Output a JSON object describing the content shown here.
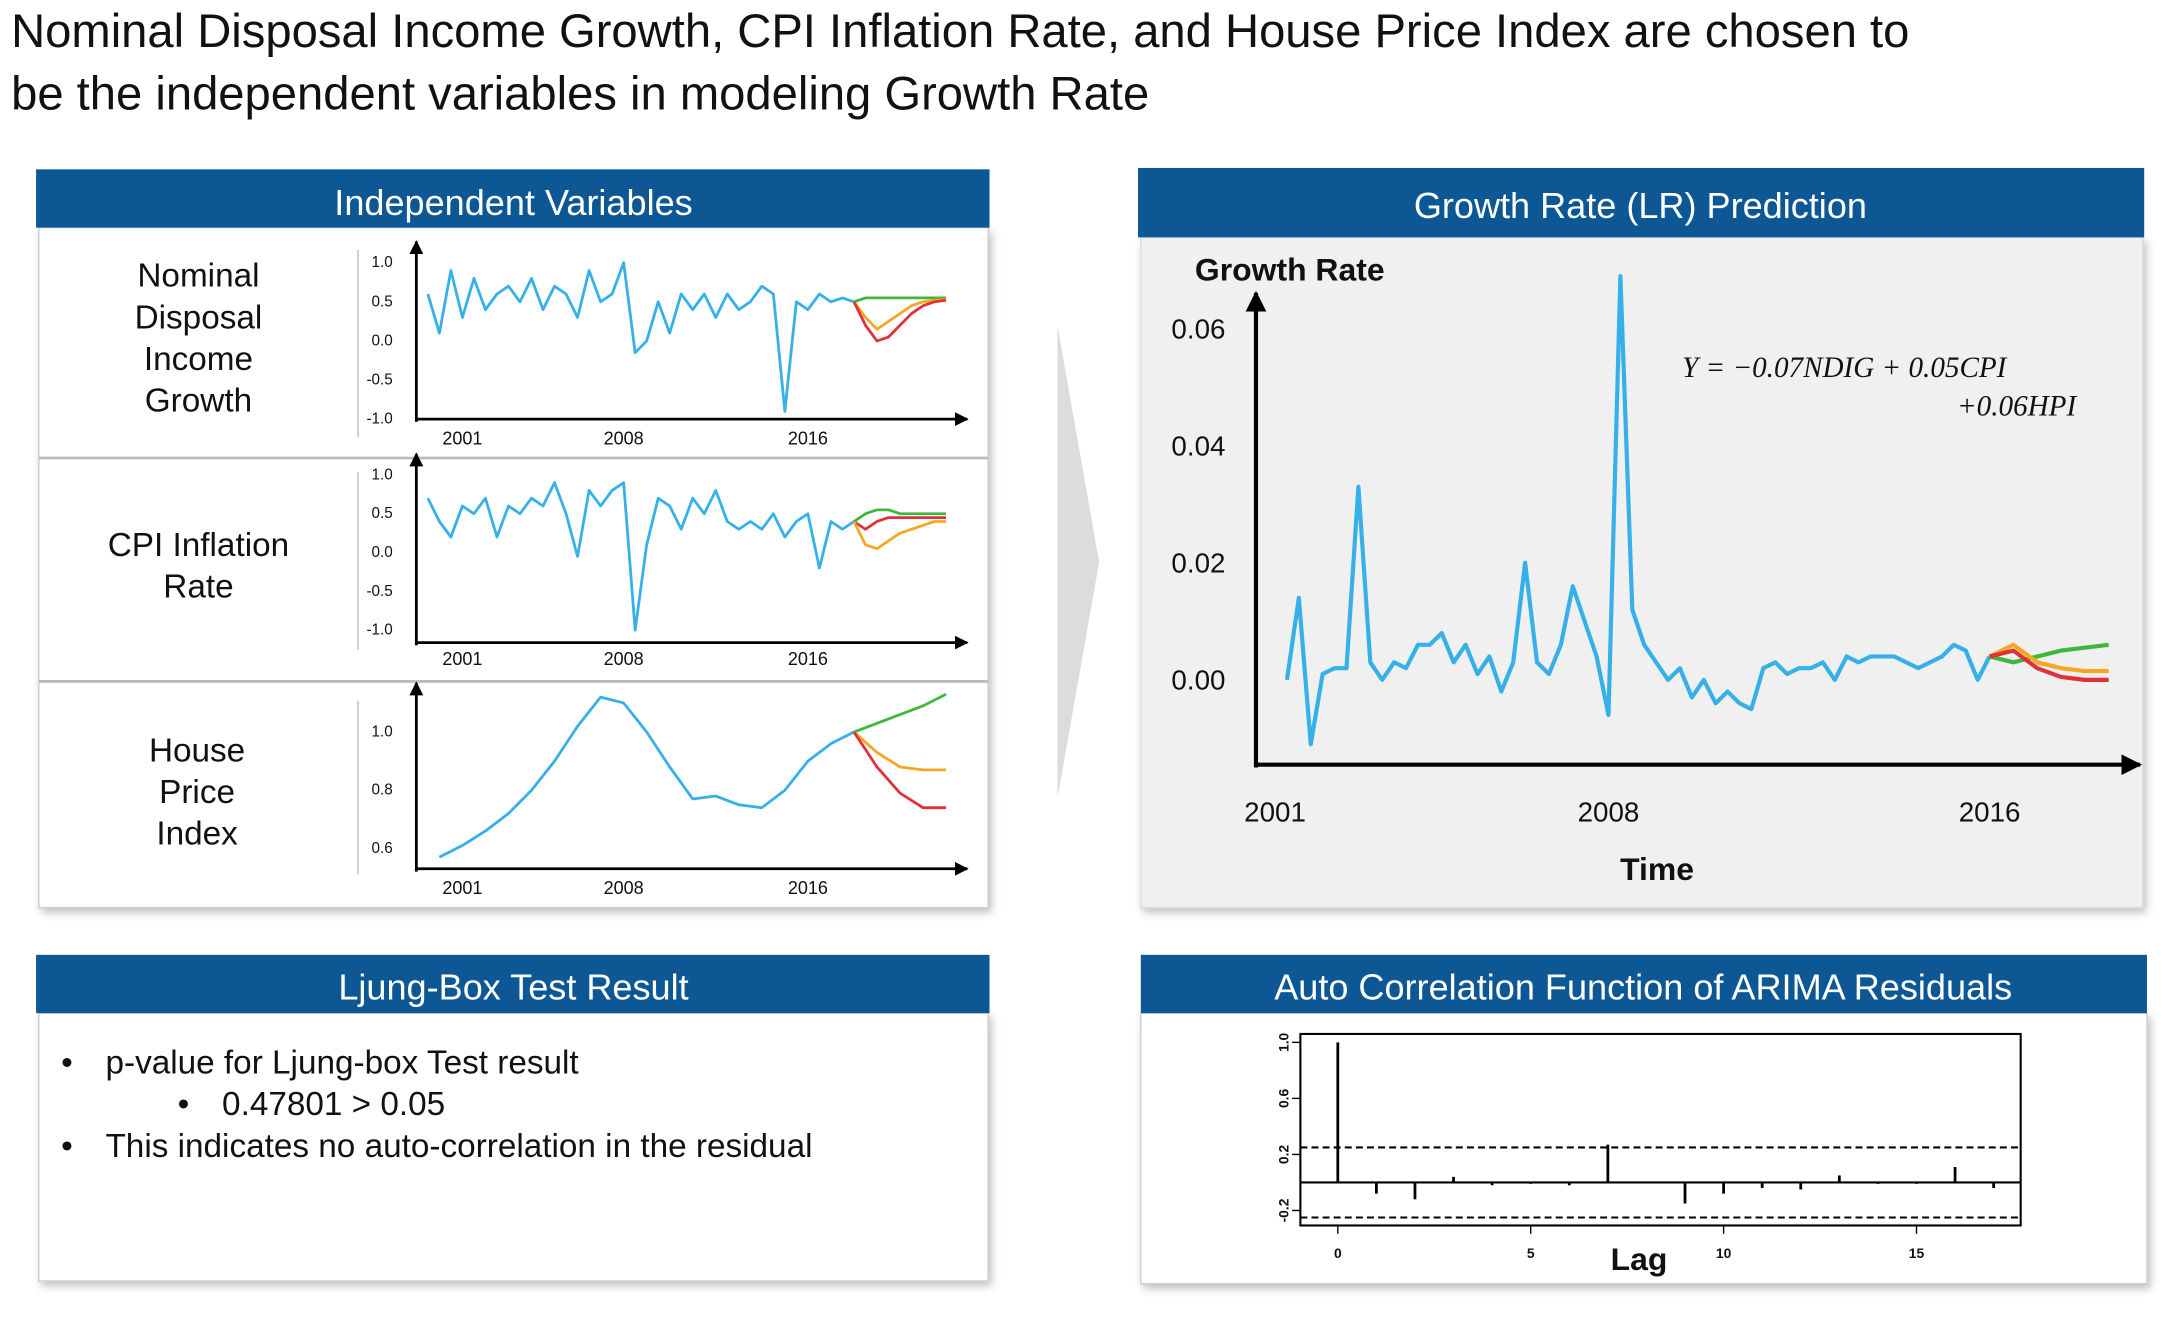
{
  "title_lines": [
    "Nominal Disposal Income Growth, CPI Inflation Rate, and House Price Index are chosen to",
    "be the independent variables in modeling Growth Rate"
  ],
  "panels": {
    "independent_variables": "Independent Variables",
    "ljung_box": {
      "title": "Ljung-Box Test Result",
      "items": [
        {
          "text": "p-value for Ljung-box Test result",
          "sub": [
            "0.47801 > 0.05"
          ]
        },
        {
          "text": "This indicates no auto-correlation in the residual"
        }
      ]
    }
  },
  "chart_data": [
    {
      "type": "line",
      "label_lines": [
        "Nominal",
        "Disposal",
        "Income",
        "Growth"
      ],
      "xlim": [
        1999,
        2022.5
      ],
      "xticks": [
        2001,
        2008,
        2016
      ],
      "ylim": [
        -1,
        1.2
      ],
      "yticks": [
        {
          "value": 1,
          "label": "1.0"
        },
        0.5,
        {
          "value": 0,
          "label": "0.0"
        },
        -0.5,
        {
          "value": -1,
          "label": "-1.0"
        }
      ],
      "series": [
        {
          "color": "#36b0e8",
          "x": [
            1999.5,
            2000,
            2000.5,
            2001,
            2001.5,
            2002,
            2002.5,
            2003,
            2003.5,
            2004,
            2004.5,
            2005,
            2005.5,
            2006,
            2006.5,
            2007,
            2007.5,
            2008,
            2008.5,
            2009,
            2009.5,
            2010,
            2010.5,
            2011,
            2011.5,
            2012,
            2012.5,
            2013,
            2013.5,
            2014,
            2014.5,
            2015,
            2015.5,
            2016,
            2016.5,
            2017,
            2017.5,
            2018
          ],
          "values": [
            0.6,
            0.1,
            0.9,
            0.3,
            0.8,
            0.4,
            0.6,
            0.7,
            0.5,
            0.8,
            0.4,
            0.7,
            0.6,
            0.3,
            0.9,
            0.5,
            0.6,
            1.0,
            -0.15,
            0.0,
            0.5,
            0.1,
            0.6,
            0.4,
            0.6,
            0.3,
            0.6,
            0.4,
            0.5,
            0.7,
            0.6,
            -0.9,
            0.5,
            0.4,
            0.6,
            0.5,
            0.55,
            0.5
          ]
        },
        {
          "color": "#3cb93c",
          "x": [
            2018,
            2018.5,
            2019,
            2019.5,
            2020,
            2020.5,
            2021,
            2021.5,
            2022
          ],
          "values": [
            0.5,
            0.55,
            0.55,
            0.55,
            0.55,
            0.55,
            0.55,
            0.55,
            0.55
          ]
        },
        {
          "color": "#f5a623",
          "x": [
            2018,
            2018.5,
            2019,
            2019.5,
            2020,
            2020.5,
            2021,
            2021.5,
            2022
          ],
          "values": [
            0.5,
            0.3,
            0.15,
            0.25,
            0.35,
            0.45,
            0.5,
            0.52,
            0.53
          ]
        },
        {
          "color": "#e0303a",
          "x": [
            2018,
            2018.5,
            2019,
            2019.5,
            2020,
            2020.5,
            2021,
            2021.5,
            2022
          ],
          "values": [
            0.5,
            0.2,
            0.0,
            0.05,
            0.2,
            0.35,
            0.45,
            0.5,
            0.52
          ]
        }
      ]
    },
    {
      "type": "line",
      "label_lines": [
        "CPI Inflation",
        "Rate"
      ],
      "xlim": [
        1999,
        2022.5
      ],
      "xticks": [
        2001,
        2008,
        2016
      ],
      "ylim": [
        -1.16,
        1.2
      ],
      "yticks": [
        {
          "value": 1,
          "label": "1.0"
        },
        0.5,
        {
          "value": 0,
          "label": "0.0"
        },
        -0.5,
        {
          "value": -1,
          "label": "-1.0"
        }
      ],
      "series": [
        {
          "color": "#36b0e8",
          "x": [
            1999.5,
            2000,
            2000.5,
            2001,
            2001.5,
            2002,
            2002.5,
            2003,
            2003.5,
            2004,
            2004.5,
            2005,
            2005.5,
            2006,
            2006.5,
            2007,
            2007.5,
            2008,
            2008.5,
            2009,
            2009.5,
            2010,
            2010.5,
            2011,
            2011.5,
            2012,
            2012.5,
            2013,
            2013.5,
            2014,
            2014.5,
            2015,
            2015.5,
            2016,
            2016.5,
            2017,
            2017.5,
            2018
          ],
          "values": [
            0.7,
            0.4,
            0.2,
            0.6,
            0.5,
            0.7,
            0.2,
            0.6,
            0.5,
            0.7,
            0.6,
            0.9,
            0.5,
            -0.05,
            0.8,
            0.6,
            0.8,
            0.9,
            -1.0,
            0.1,
            0.7,
            0.6,
            0.3,
            0.7,
            0.5,
            0.8,
            0.4,
            0.3,
            0.4,
            0.3,
            0.5,
            0.2,
            0.4,
            0.5,
            -0.2,
            0.4,
            0.3,
            0.4
          ]
        },
        {
          "color": "#3cb93c",
          "x": [
            2018,
            2018.5,
            2019,
            2019.5,
            2020,
            2020.5,
            2021,
            2021.5,
            2022
          ],
          "values": [
            0.4,
            0.5,
            0.55,
            0.55,
            0.5,
            0.5,
            0.5,
            0.5,
            0.5
          ]
        },
        {
          "color": "#e0303a",
          "x": [
            2018,
            2018.5,
            2019,
            2019.5,
            2020,
            2020.5,
            2021,
            2021.5,
            2022
          ],
          "values": [
            0.4,
            0.3,
            0.4,
            0.45,
            0.45,
            0.45,
            0.45,
            0.45,
            0.45
          ]
        },
        {
          "color": "#f5a623",
          "x": [
            2018,
            2018.5,
            2019,
            2019.5,
            2020,
            2020.5,
            2021,
            2021.5,
            2022
          ],
          "values": [
            0.4,
            0.1,
            0.05,
            0.15,
            0.25,
            0.3,
            0.35,
            0.4,
            0.4
          ]
        }
      ]
    },
    {
      "type": "line",
      "label_lines": [
        "House",
        "Price",
        "Index"
      ],
      "xlim": [
        1999,
        2022.5
      ],
      "xticks": [
        2001,
        2008,
        2016
      ],
      "ylim": [
        0.53,
        1.15
      ],
      "yticks": [
        {
          "value": 1,
          "label": "1.0"
        },
        0.8,
        0.6
      ],
      "series": [
        {
          "color": "#36b0e8",
          "x": [
            2000,
            2001,
            2002,
            2003,
            2004,
            2005,
            2006,
            2007,
            2008,
            2009,
            2010,
            2011,
            2012,
            2013,
            2014,
            2015,
            2016,
            2017,
            2018
          ],
          "values": [
            0.57,
            0.61,
            0.66,
            0.72,
            0.8,
            0.9,
            1.02,
            1.12,
            1.1,
            1.0,
            0.88,
            0.77,
            0.78,
            0.75,
            0.74,
            0.8,
            0.9,
            0.96,
            1.0
          ]
        },
        {
          "color": "#3cb93c",
          "x": [
            2018,
            2019,
            2020,
            2021,
            2022
          ],
          "values": [
            1.0,
            1.03,
            1.06,
            1.09,
            1.13
          ]
        },
        {
          "color": "#f5a623",
          "x": [
            2018,
            2019,
            2020,
            2021,
            2022
          ],
          "values": [
            1.0,
            0.93,
            0.88,
            0.87,
            0.87
          ]
        },
        {
          "color": "#e0303a",
          "x": [
            2018,
            2019,
            2020,
            2021,
            2022
          ],
          "values": [
            1.0,
            0.88,
            0.79,
            0.74,
            0.74
          ]
        }
      ]
    },
    {
      "type": "line",
      "title": "Growth Rate (LR) Prediction",
      "ylabel": "Growth Rate",
      "xlabel": "Time",
      "annotation_lines": [
        "Y = −0.07NDIG + 0.05CPI",
        "+0.06HPI"
      ],
      "xlim": [
        2000.6,
        2019.1
      ],
      "xticks": [
        2001,
        2008,
        2016
      ],
      "ylim": [
        -0.0145,
        0.0652
      ],
      "yticks": [
        0.06,
        0.04,
        0.02,
        {
          "value": 0,
          "label": "0.00"
        }
      ],
      "series": [
        {
          "color": "#36b0e8",
          "x": [
            2001.25,
            2001.5,
            2001.75,
            2002,
            2002.25,
            2002.5,
            2002.75,
            2003,
            2003.25,
            2003.5,
            2003.75,
            2004,
            2004.25,
            2004.5,
            2004.75,
            2005,
            2005.25,
            2005.5,
            2005.75,
            2006,
            2006.25,
            2006.5,
            2006.75,
            2007,
            2007.25,
            2007.5,
            2007.75,
            2008,
            2008.25,
            2008.5,
            2008.75,
            2009,
            2009.25,
            2009.5,
            2009.75,
            2010,
            2010.25,
            2010.5,
            2010.75,
            2011,
            2011.25,
            2011.5,
            2011.75,
            2012,
            2012.25,
            2012.5,
            2012.75,
            2013,
            2013.25,
            2013.5,
            2013.75,
            2014,
            2014.25,
            2014.5,
            2014.75,
            2015,
            2015.25,
            2015.5,
            2015.75,
            2016
          ],
          "values": [
            0.0,
            0.014,
            -0.011,
            0.001,
            0.002,
            0.002,
            0.033,
            0.003,
            0.0,
            0.003,
            0.002,
            0.006,
            0.006,
            0.008,
            0.003,
            0.006,
            0.001,
            0.004,
            -0.002,
            0.003,
            0.02,
            0.003,
            0.001,
            0.006,
            0.016,
            0.01,
            0.004,
            -0.006,
            0.069,
            0.012,
            0.006,
            0.003,
            0.0,
            0.002,
            -0.003,
            0.0,
            -0.004,
            -0.002,
            -0.004,
            -0.005,
            0.002,
            0.003,
            0.001,
            0.002,
            0.002,
            0.003,
            0.0,
            0.004,
            0.003,
            0.004,
            0.004,
            0.004,
            0.003,
            0.002,
            0.003,
            0.004,
            0.006,
            0.005,
            0.0,
            0.004
          ]
        },
        {
          "color": "#3cb93c",
          "x": [
            2016,
            2016.5,
            2017,
            2017.5,
            2018,
            2018.5
          ],
          "values": [
            0.004,
            0.003,
            0.004,
            0.005,
            0.0055,
            0.006
          ]
        },
        {
          "color": "#f5a623",
          "x": [
            2016,
            2016.5,
            2017,
            2017.5,
            2018,
            2018.5
          ],
          "values": [
            0.004,
            0.006,
            0.003,
            0.002,
            0.0015,
            0.0015
          ]
        },
        {
          "color": "#e0303a",
          "x": [
            2016,
            2016.5,
            2017,
            2017.5,
            2018,
            2018.5
          ],
          "values": [
            0.004,
            0.005,
            0.002,
            0.0005,
            0.0,
            0.0
          ]
        }
      ]
    },
    {
      "type": "stem",
      "title": "Auto Correlation Function of ARIMA Residuals",
      "xlabel": "Lag",
      "xlim": [
        -0.97,
        17.7
      ],
      "xticks": [
        0,
        5,
        10,
        15
      ],
      "ylim": [
        -0.307,
        1.06
      ],
      "yticks": [
        -0.2,
        0.2,
        0.6,
        {
          "value": 1,
          "label": "1.0"
        }
      ],
      "confidence_bounds": [
        0.25,
        -0.25
      ],
      "x": [
        0,
        1,
        2,
        3,
        4,
        5,
        6,
        7,
        8,
        9,
        10,
        11,
        12,
        13,
        14,
        15,
        16,
        17
      ],
      "values": [
        1.0,
        -0.08,
        -0.12,
        0.04,
        -0.02,
        -0.01,
        -0.02,
        0.27,
        0.0,
        -0.15,
        -0.08,
        -0.04,
        -0.05,
        0.05,
        -0.01,
        -0.01,
        0.11,
        -0.04
      ]
    }
  ]
}
